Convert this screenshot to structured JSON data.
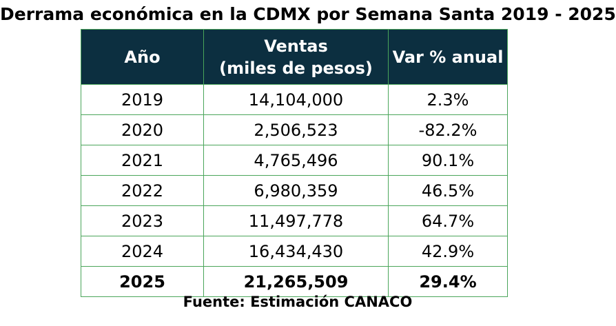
{
  "title": "Derrama económica en la CDMX por Semana Santa 2019 - 2025",
  "table": {
    "headers": {
      "year": "Año",
      "sales_line1": "Ventas",
      "sales_line2": "(miles de pesos)",
      "change": "Var % anual"
    },
    "rows": [
      {
        "year": "2019",
        "sales": "14,104,000",
        "change": "2.3%"
      },
      {
        "year": "2020",
        "sales": "2,506,523",
        "change": "-82.2%"
      },
      {
        "year": "2021",
        "sales": "4,765,496",
        "change": "90.1%"
      },
      {
        "year": "2022",
        "sales": "6,980,359",
        "change": "46.5%"
      },
      {
        "year": "2023",
        "sales": "11,497,778",
        "change": "64.7%"
      },
      {
        "year": "2024",
        "sales": "16,434,430",
        "change": "42.9%"
      },
      {
        "year": "2025",
        "sales": "21,265,509",
        "change": "29.4%",
        "emphasis": true
      }
    ]
  },
  "source": "Fuente: Estimación CANACO",
  "colors": {
    "header_background": "#0c2f40",
    "header_text": "#ffffff",
    "grid_lines": "#4aa55a"
  }
}
